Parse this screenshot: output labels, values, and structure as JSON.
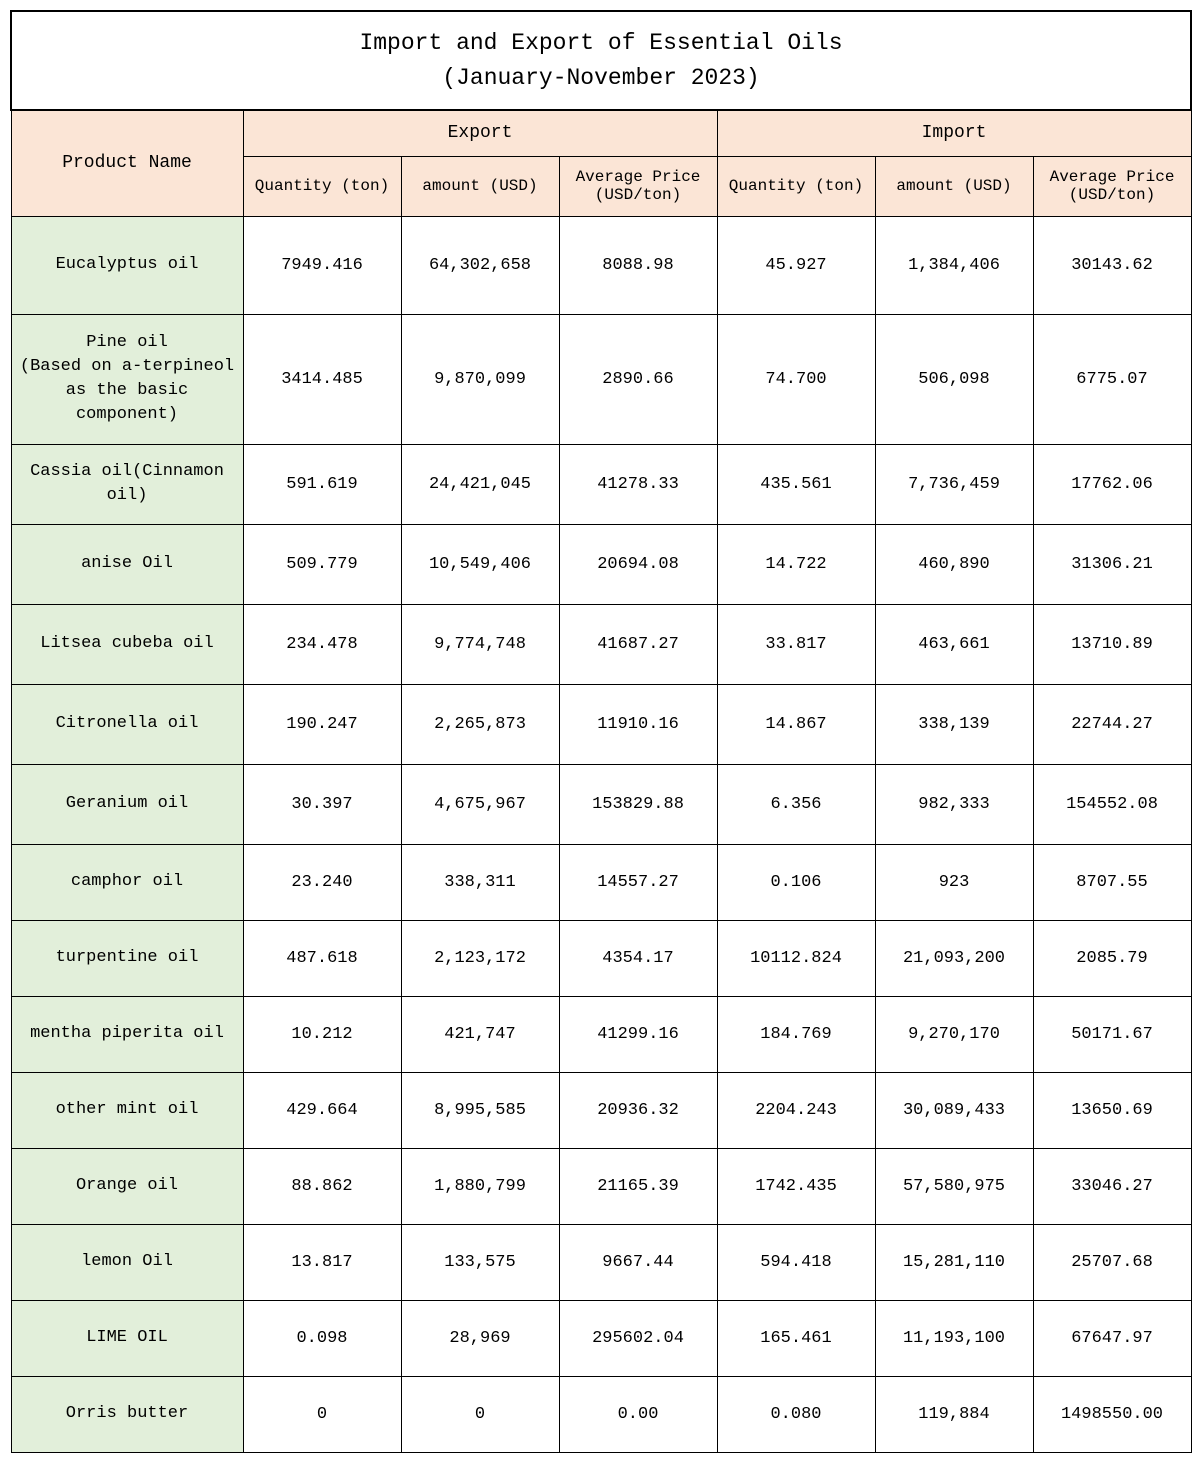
{
  "title_line1": "Import and Export of Essential Oils",
  "title_line2": "(January-November 2023)",
  "headers": {
    "product_name": "Product Name",
    "export": "Export",
    "import": "Import",
    "qty": "Quantity (ton)",
    "amount": "amount (USD)",
    "avg": "Average Price (USD/ton)"
  },
  "colors": {
    "header_bg": "#fbe5d6",
    "rowname_bg": "#e2efda",
    "border": "#000000",
    "background": "#ffffff",
    "text": "#000000"
  },
  "columns": [
    "Product Name",
    "Export Quantity (ton)",
    "Export amount (USD)",
    "Export Average Price (USD/ton)",
    "Import Quantity (ton)",
    "Import amount (USD)",
    "Import Average Price (USD/ton)"
  ],
  "rows": [
    {
      "name": "Eucalyptus oil",
      "h": "h-lg",
      "exp_qty": "7949.416",
      "exp_amt": "64,302,658",
      "exp_avg": "8088.98",
      "imp_qty": "45.927",
      "imp_amt": "1,384,406",
      "imp_avg": "30143.62"
    },
    {
      "name": "Pine oil\n(Based on a-terpineol as the basic component)",
      "h": "h-xl",
      "exp_qty": "3414.485",
      "exp_amt": "9,870,099",
      "exp_avg": "2890.66",
      "imp_qty": "74.700",
      "imp_amt": "506,098",
      "imp_avg": "6775.07"
    },
    {
      "name": "Cassia oil(Cinnamon oil)",
      "h": "h-md",
      "exp_qty": "591.619",
      "exp_amt": "24,421,045",
      "exp_avg": "41278.33",
      "imp_qty": "435.561",
      "imp_amt": "7,736,459",
      "imp_avg": "17762.06"
    },
    {
      "name": "anise Oil",
      "h": "h-md",
      "exp_qty": "509.779",
      "exp_amt": "10,549,406",
      "exp_avg": "20694.08",
      "imp_qty": "14.722",
      "imp_amt": "460,890",
      "imp_avg": "31306.21"
    },
    {
      "name": "Litsea cubeba oil",
      "h": "h-md",
      "exp_qty": "234.478",
      "exp_amt": "9,774,748",
      "exp_avg": "41687.27",
      "imp_qty": "33.817",
      "imp_amt": "463,661",
      "imp_avg": "13710.89"
    },
    {
      "name": "Citronella oil",
      "h": "h-md",
      "exp_qty": "190.247",
      "exp_amt": "2,265,873",
      "exp_avg": "11910.16",
      "imp_qty": "14.867",
      "imp_amt": "338,139",
      "imp_avg": "22744.27"
    },
    {
      "name": "Geranium oil",
      "h": "h-md",
      "exp_qty": "30.397",
      "exp_amt": "4,675,967",
      "exp_avg": "153829.88",
      "imp_qty": "6.356",
      "imp_amt": "982,333",
      "imp_avg": "154552.08"
    },
    {
      "name": "camphor oil",
      "h": "h-sm",
      "exp_qty": "23.240",
      "exp_amt": "338,311",
      "exp_avg": "14557.27",
      "imp_qty": "0.106",
      "imp_amt": "923",
      "imp_avg": "8707.55"
    },
    {
      "name": "turpentine oil",
      "h": "h-sm",
      "exp_qty": "487.618",
      "exp_amt": "2,123,172",
      "exp_avg": "4354.17",
      "imp_qty": "10112.824",
      "imp_amt": "21,093,200",
      "imp_avg": "2085.79"
    },
    {
      "name": "mentha piperita oil",
      "h": "h-sm",
      "exp_qty": "10.212",
      "exp_amt": "421,747",
      "exp_avg": "41299.16",
      "imp_qty": "184.769",
      "imp_amt": "9,270,170",
      "imp_avg": "50171.67"
    },
    {
      "name": "other mint oil",
      "h": "h-sm",
      "exp_qty": "429.664",
      "exp_amt": "8,995,585",
      "exp_avg": "20936.32",
      "imp_qty": "2204.243",
      "imp_amt": "30,089,433",
      "imp_avg": "13650.69"
    },
    {
      "name": "Orange oil",
      "h": "h-sm",
      "exp_qty": "88.862",
      "exp_amt": "1,880,799",
      "exp_avg": "21165.39",
      "imp_qty": "1742.435",
      "imp_amt": "57,580,975",
      "imp_avg": "33046.27"
    },
    {
      "name": "lemon Oil",
      "h": "h-sm",
      "exp_qty": "13.817",
      "exp_amt": "133,575",
      "exp_avg": "9667.44",
      "imp_qty": "594.418",
      "imp_amt": "15,281,110",
      "imp_avg": "25707.68"
    },
    {
      "name": "LIME OIL",
      "h": "h-sm",
      "exp_qty": "0.098",
      "exp_amt": "28,969",
      "exp_avg": "295602.04",
      "imp_qty": "165.461",
      "imp_amt": "11,193,100",
      "imp_avg": "67647.97"
    },
    {
      "name": "Orris butter",
      "h": "h-sm",
      "exp_qty": "0",
      "exp_amt": "0",
      "exp_avg": "0.00",
      "imp_qty": "0.080",
      "imp_amt": "119,884",
      "imp_avg": "1498550.00"
    }
  ]
}
